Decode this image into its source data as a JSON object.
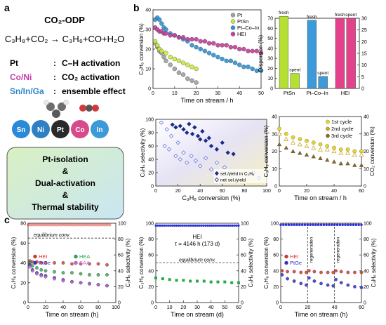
{
  "panel_labels": {
    "a": "a",
    "b": "b",
    "c": "c"
  },
  "scheme": {
    "title": "CO₂-ODP",
    "equation": "C₃H₈+CO₂ → C₃H₆+CO+H₂O",
    "roles": [
      {
        "element": "Pt",
        "colon": ":",
        "role": "C–H activation",
        "color": "#111111"
      },
      {
        "element": "Co/Ni",
        "colon": ":",
        "role": "CO₂ activation",
        "color": "#c33ca8"
      },
      {
        "element": "Sn/In/Ga",
        "colon": ":",
        "role": "ensemble effect",
        "color": "#2f86c8"
      }
    ],
    "atoms": [
      "Sn",
      "Ni",
      "Pt",
      "Co",
      "In"
    ],
    "summary_lines": [
      "Pt-isolation",
      "&",
      "Dual-activation",
      "&",
      "Thermal stability"
    ]
  },
  "chart_data": [
    {
      "id": "b1",
      "type": "scatter",
      "xlabel": "Time on stream / h",
      "ylabel": "C₃H₈ conversion (%)",
      "xlim": [
        0,
        50
      ],
      "ylim": [
        0,
        40
      ],
      "xticks": [
        "0",
        "10",
        "20",
        "30",
        "40",
        "50"
      ],
      "yticks": [
        "0",
        "10",
        "20",
        "30",
        "40"
      ],
      "series": [
        {
          "name": "Pt",
          "color": "#a0a0a0",
          "x": [
            1,
            2,
            3,
            4,
            5,
            6,
            8,
            10,
            12,
            14,
            16,
            18,
            20
          ],
          "y": [
            23,
            21,
            19,
            18,
            16,
            14,
            12,
            10,
            8,
            7,
            5,
            4,
            3
          ]
        },
        {
          "name": "PtSn",
          "color": "#c7ec3a",
          "x": [
            1,
            2,
            3,
            4,
            6,
            8,
            10,
            12,
            14,
            16,
            18,
            20
          ],
          "y": [
            24,
            22,
            20,
            19,
            18,
            16,
            15,
            14,
            13,
            12,
            11,
            10
          ]
        },
        {
          "name": "Pt–Co–In",
          "color": "#2b93d6",
          "x": [
            1,
            2,
            3,
            4,
            5,
            6,
            8,
            10,
            12,
            14,
            16,
            18,
            20,
            22,
            24,
            26,
            28,
            30,
            32,
            34,
            36,
            38,
            40,
            42,
            44,
            46,
            48,
            50
          ],
          "y": [
            35,
            36,
            35,
            33,
            31,
            30,
            28,
            27,
            26,
            25,
            24,
            22,
            21,
            20,
            19,
            18,
            17,
            16,
            15,
            14,
            14,
            13,
            12,
            11,
            11,
            10,
            9,
            9
          ]
        },
        {
          "name": "HEI",
          "color": "#c83d9a",
          "x": [
            1,
            2,
            3,
            4,
            5,
            6,
            8,
            10,
            12,
            14,
            16,
            18,
            20,
            22,
            24,
            26,
            28,
            30,
            32,
            34,
            36,
            38,
            40,
            42,
            44,
            46,
            48,
            50
          ],
          "y": [
            31,
            30,
            29,
            29,
            28,
            28,
            27,
            27,
            26,
            26,
            25,
            25,
            25,
            24,
            24,
            23,
            23,
            22,
            22,
            22,
            21,
            21,
            20,
            20,
            19,
            19,
            19,
            18
          ]
        }
      ]
    },
    {
      "id": "b2",
      "type": "bar",
      "categories": [
        "PtSn",
        "Pt–Co–In",
        "HEI"
      ],
      "ylabel": "Dispersion (%)",
      "ylim": [
        0,
        70
      ],
      "yticks": [
        "0",
        "10",
        "20",
        "30",
        "40",
        "50",
        "60",
        "70"
      ],
      "y2ticks": [
        "0",
        "5",
        "10",
        "15",
        "20",
        "25",
        "30"
      ],
      "series": [
        {
          "name": "fresh",
          "color": "#b6df35",
          "values": [
            72,
            68,
            70
          ]
        },
        {
          "name": "spent",
          "color": "#a8c9ea",
          "values": [
            15,
            12,
            70
          ]
        }
      ],
      "bar_labels": [
        "fresh",
        "spent",
        "fresh",
        "spent",
        "fresh",
        "spent"
      ]
    },
    {
      "id": "b3",
      "type": "scatter",
      "xlabel": "C₃H₈ conversion (%)",
      "ylabel": "C₃H₆ selectivity (%)",
      "xlim": [
        0,
        100
      ],
      "ylim": [
        0,
        100
      ],
      "xticks": [
        "0",
        "20",
        "40",
        "60",
        "80",
        "100"
      ],
      "yticks": [
        "0",
        "20",
        "40",
        "60",
        "80",
        "100"
      ],
      "legend": [
        "sel./yield in C₃H₆",
        "net sel./yield"
      ],
      "series": [
        {
          "name": "sel./yield in C₃H₆",
          "color": "#1b2a8a",
          "x": [
            15,
            18,
            22,
            25,
            28,
            30,
            33,
            35,
            38,
            40,
            42,
            45,
            48,
            50,
            55,
            60,
            65,
            70
          ],
          "y": [
            92,
            88,
            90,
            85,
            80,
            93,
            78,
            88,
            75,
            70,
            82,
            68,
            72,
            60,
            55,
            65,
            50,
            48
          ]
        },
        {
          "name": "net sel./yield",
          "color": "#5b6fd8",
          "x": [
            5,
            8,
            10,
            12,
            14,
            18,
            20,
            22,
            25,
            28,
            32,
            36,
            40,
            45,
            50,
            55,
            62,
            88,
            93
          ],
          "y": [
            95,
            60,
            85,
            55,
            75,
            45,
            65,
            40,
            50,
            35,
            45,
            38,
            30,
            42,
            25,
            35,
            28,
            20,
            12
          ]
        }
      ]
    },
    {
      "id": "b4",
      "type": "scatter",
      "xlabel": "Time on stream / h",
      "ylabel": "C₃H₈ conversion (%)",
      "y2label": "CO₂ conversion (%)",
      "xlim": [
        0,
        60
      ],
      "ylim": [
        0,
        40
      ],
      "y2lim": [
        0,
        40
      ],
      "xticks": [
        "0",
        "20",
        "40",
        "60"
      ],
      "yticks": [
        "0",
        "10",
        "20",
        "30",
        "40"
      ],
      "y2ticks": [
        "0",
        "10",
        "20",
        "30",
        "40"
      ],
      "legend": [
        "1st cycle",
        "2nd cycle",
        "3rd cycle"
      ],
      "series": [
        {
          "name": "1st cycle",
          "color": "#e8d62c",
          "x": [
            0,
            5,
            10,
            15,
            20,
            25,
            30,
            35,
            40,
            45,
            50,
            55,
            60
          ],
          "y": [
            33,
            30,
            28,
            27,
            26,
            25,
            24,
            23,
            22,
            21,
            21,
            20,
            20
          ]
        },
        {
          "name": "2nd cycle",
          "color": "#c9a92a",
          "x": [
            0,
            5,
            10,
            15,
            20,
            25,
            30,
            35,
            40,
            45,
            50,
            55,
            60
          ],
          "y": [
            30,
            27,
            25,
            24,
            23,
            22,
            21,
            21,
            20,
            19,
            19,
            18,
            18
          ]
        },
        {
          "name": "3rd cycle",
          "color": "#8a6a28",
          "x": [
            0,
            5,
            10,
            15,
            20,
            25,
            30,
            35,
            40,
            45,
            50,
            55,
            60
          ],
          "y": [
            24,
            22,
            20,
            19,
            18,
            17,
            16,
            15,
            14,
            13,
            13,
            12,
            12
          ]
        }
      ]
    },
    {
      "id": "c1",
      "type": "scatter",
      "xlabel": "Time on stream (h)",
      "ylabel": "C₃H₈ conversion (%)",
      "y2label": "C₃H₆ selectivity (%)",
      "xlim": [
        0,
        100
      ],
      "ylim": [
        0,
        80
      ],
      "y2lim": [
        0,
        100
      ],
      "xticks": [
        "0",
        "20",
        "40",
        "60",
        "80",
        "100"
      ],
      "yticks": [
        "0",
        "20",
        "40",
        "60",
        "80"
      ],
      "y2ticks": [
        "0",
        "20",
        "40",
        "60",
        "80",
        "100"
      ],
      "annotation": "equilibrium conv.",
      "legend": [
        "HEI",
        "HEA",
        "PtGe",
        "SAA"
      ],
      "series": [
        {
          "name": "HEI",
          "color": "#d8372a",
          "x": [
            2,
            5,
            10,
            15,
            20,
            30,
            40,
            50,
            60,
            70,
            80,
            90
          ],
          "y": [
            42,
            41,
            41,
            40,
            40,
            40,
            40,
            39,
            39,
            39,
            39,
            38
          ]
        },
        {
          "name": "HEA",
          "color": "#2aa84a",
          "x": [
            2,
            5,
            10,
            15,
            20,
            30,
            40,
            50,
            60,
            70,
            80,
            90
          ],
          "y": [
            40,
            37,
            35,
            33,
            32,
            31,
            30,
            30,
            29,
            28,
            28,
            28
          ]
        },
        {
          "name": "PtGe",
          "color": "#2b2fd8",
          "x": [
            2,
            5,
            10,
            15,
            20,
            30,
            40,
            50,
            60,
            70,
            80,
            90
          ],
          "y": [
            38,
            33,
            30,
            28,
            27,
            25,
            23,
            21,
            20,
            19,
            18,
            17
          ]
        },
        {
          "name": "SAA",
          "color": "#c069d8",
          "x": [
            2,
            5,
            10,
            15,
            20,
            30,
            40,
            50,
            60,
            70,
            80,
            90
          ],
          "y": [
            36,
            32,
            29,
            27,
            26,
            24,
            22,
            21,
            20,
            19,
            18,
            17
          ]
        }
      ]
    },
    {
      "id": "c2",
      "type": "scatter",
      "xlabel": "Time on stream (d)",
      "ylabel": "C₃H₈ conversion (%)",
      "y2label": "C₃H₆ selectivity (%)",
      "xlim": [
        0,
        60
      ],
      "ylim": [
        0,
        100
      ],
      "y2lim": [
        0,
        100
      ],
      "xticks": [
        "0",
        "10",
        "20",
        "30",
        "40",
        "50",
        "60"
      ],
      "yticks": [
        "0",
        "20",
        "40",
        "60",
        "80",
        "100"
      ],
      "y2ticks": [
        "0",
        "20",
        "40",
        "60",
        "80",
        "100"
      ],
      "label": "HEI",
      "tau": "τ = 4146 h (173 d)",
      "annotation": "equilibrium conv.",
      "series": [
        {
          "name": "HEI",
          "color": "#2aa84a",
          "x": [
            0,
            5,
            10,
            15,
            20,
            25,
            30,
            35,
            40,
            45,
            50,
            55,
            60
          ],
          "y": [
            31,
            30,
            29,
            28,
            28,
            27,
            27,
            27,
            26,
            26,
            26,
            25,
            25
          ]
        }
      ]
    },
    {
      "id": "c3",
      "type": "scatter",
      "xlabel": "Time on stream (h)",
      "ylabel": "C₃H₈ conversion (%)",
      "y2label": "C₃H₆ selectivity (%)",
      "xlim": [
        0,
        60
      ],
      "ylim": [
        0,
        100
      ],
      "y2lim": [
        0,
        100
      ],
      "xticks": [
        "0",
        "20",
        "40",
        "60"
      ],
      "yticks": [
        "0",
        "20",
        "40",
        "60",
        "80",
        "100"
      ],
      "y2ticks": [
        "0",
        "20",
        "40",
        "60",
        "80",
        "100"
      ],
      "legend": [
        "HEI",
        "PtGe"
      ],
      "annotations": [
        "regeneration",
        "regeneration"
      ],
      "series": [
        {
          "name": "HEI",
          "color": "#d8372a",
          "x": [
            1,
            5,
            10,
            15,
            19,
            21,
            25,
            30,
            35,
            39,
            41,
            45,
            50,
            55,
            60
          ],
          "y": [
            40,
            39,
            39,
            38,
            38,
            40,
            39,
            38,
            38,
            38,
            40,
            39,
            38,
            38,
            38
          ]
        },
        {
          "name": "PtGe",
          "color": "#2b2fd8",
          "x": [
            1,
            5,
            10,
            15,
            19,
            21,
            25,
            30,
            35,
            39,
            41,
            45,
            50,
            55,
            60
          ],
          "y": [
            35,
            30,
            27,
            24,
            22,
            31,
            27,
            24,
            22,
            21,
            29,
            25,
            22,
            20,
            19
          ]
        }
      ]
    }
  ]
}
